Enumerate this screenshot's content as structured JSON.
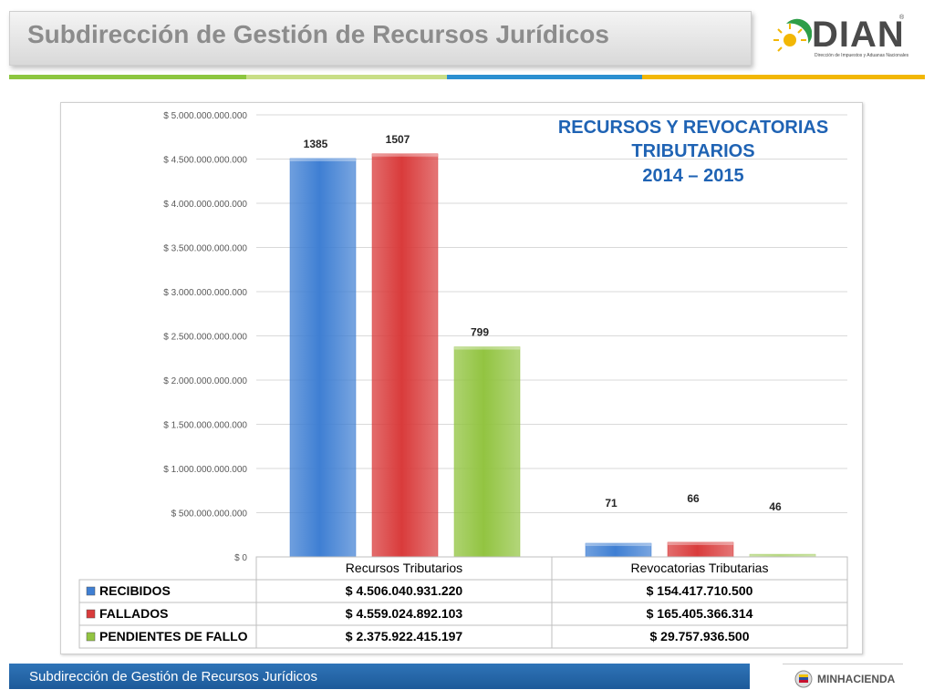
{
  "header": {
    "title": "Subdirección de Gestión de Recursos Jurídicos"
  },
  "logo": {
    "name": "DIAN",
    "registered": "®",
    "subtitle": "Dirección de Impuestos y Aduanas Nacionales"
  },
  "footer": {
    "title": "Subdirección de Gestión de Recursos Jurídicos",
    "ministry": "MINHACIENDA"
  },
  "colors": {
    "recibidos": "#3f7fd3",
    "fallados": "#d93b3b",
    "pendientes": "#92c441",
    "title_blue": "#1f63b4",
    "footer_blue": "#2467ab"
  },
  "chart_data": {
    "type": "bar",
    "title_lines": [
      "RECURSOS Y REVOCATORIAS",
      "TRIBUTARIOS",
      "2014 – 2015"
    ],
    "categories": [
      "Recursos Tributarios",
      "Revocatorias Tributarias"
    ],
    "series": [
      {
        "name": "RECIBIDOS",
        "values": [
          4506040931220,
          154417710500
        ],
        "labels": [
          "1385",
          "71"
        ],
        "table": [
          "$ 4.506.040.931.220",
          "$ 154.417.710.500"
        ],
        "color": "#3f7fd3"
      },
      {
        "name": "FALLADOS",
        "values": [
          4559024892103,
          165405366314
        ],
        "labels": [
          "1507",
          "66"
        ],
        "table": [
          "$ 4.559.024.892.103",
          "$ 165.405.366.314"
        ],
        "color": "#d93b3b"
      },
      {
        "name": "PENDIENTES DE FALLO",
        "values": [
          2375922415197,
          29757936500
        ],
        "labels": [
          "799",
          "46"
        ],
        "table": [
          "$ 2.375.922.415.197",
          "$ 29.757.936.500"
        ],
        "color": "#92c441"
      }
    ],
    "ylim": [
      0,
      5000000000000
    ],
    "yticks": [
      0,
      500000000000,
      1000000000000,
      1500000000000,
      2000000000000,
      2500000000000,
      3000000000000,
      3500000000000,
      4000000000000,
      4500000000000,
      5000000000000
    ],
    "ytick_labels": [
      "$ 0",
      "$ 500.000.000.000",
      "$ 1.000.000.000.000",
      "$ 1.500.000.000.000",
      "$ 2.000.000.000.000",
      "$ 2.500.000.000.000",
      "$ 3.000.000.000.000",
      "$ 3.500.000.000.000",
      "$ 4.000.000.000.000",
      "$ 4.500.000.000.000",
      "$ 5.000.000.000.000"
    ],
    "grid": true,
    "legend": "data-table"
  }
}
